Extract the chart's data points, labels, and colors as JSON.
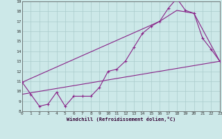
{
  "xlabel": "Windchill (Refroidissement éolien,°C)",
  "xlim": [
    0,
    23
  ],
  "ylim": [
    8,
    19
  ],
  "xticks": [
    0,
    1,
    2,
    3,
    4,
    5,
    6,
    7,
    8,
    9,
    10,
    11,
    12,
    13,
    14,
    15,
    16,
    17,
    18,
    19,
    20,
    21,
    22,
    23
  ],
  "yticks": [
    8,
    9,
    10,
    11,
    12,
    13,
    14,
    15,
    16,
    17,
    18,
    19
  ],
  "bg_color": "#cce8e8",
  "grid_color": "#aacccc",
  "line_color": "#882288",
  "zigzag_x": [
    0,
    1,
    2,
    3,
    4,
    5,
    6,
    7,
    8,
    9,
    10,
    11,
    12,
    13,
    14,
    15,
    16,
    17,
    18,
    19,
    20,
    21,
    22,
    23
  ],
  "zigzag_y": [
    10.9,
    9.7,
    8.5,
    8.7,
    9.9,
    8.5,
    9.5,
    9.5,
    9.5,
    10.4,
    12.0,
    12.2,
    13.0,
    14.4,
    15.8,
    16.5,
    17.0,
    18.3,
    19.3,
    18.1,
    17.8,
    15.3,
    14.2,
    13.0
  ],
  "trend_x": [
    0,
    23
  ],
  "trend_y": [
    9.7,
    13.0
  ],
  "envelope_x": [
    0,
    16,
    18,
    20,
    23
  ],
  "envelope_y": [
    10.9,
    17.0,
    18.1,
    17.8,
    13.0
  ]
}
